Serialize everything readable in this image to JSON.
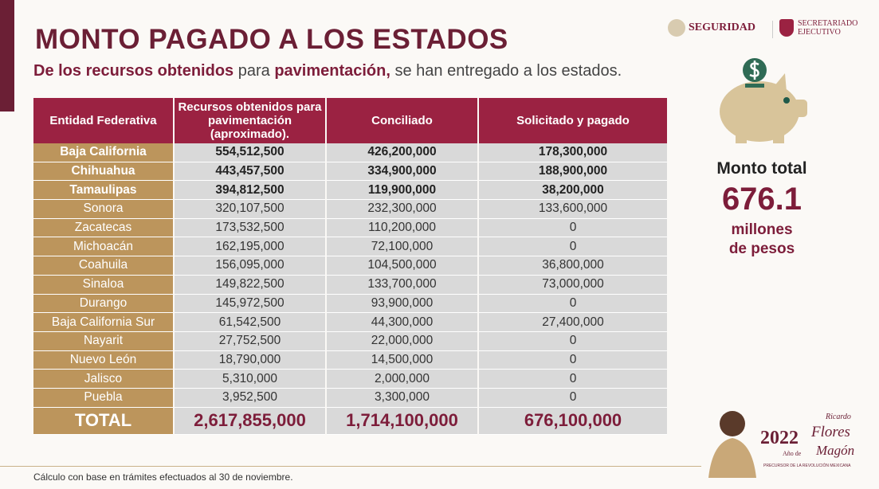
{
  "title": "MONTO PAGADO A LOS ESTADOS",
  "subtitle": {
    "p1": "De los recursos obtenidos",
    "p2": " para ",
    "p3": "pavimentación,",
    "p4": " se han entregado a los estados."
  },
  "logos": {
    "seguridad": "SEGURIDAD",
    "secretariado": "SECRETARIADO",
    "ejecutivo": "EJECUTIVO"
  },
  "table": {
    "headers": [
      "Entidad Federativa",
      "Recursos obtenidos para pavimentación (aproximado).",
      "Conciliado",
      "Solicitado y pagado"
    ],
    "rows": [
      [
        "Baja California",
        "554,512,500",
        "426,200,000",
        "178,300,000"
      ],
      [
        "Chihuahua",
        "443,457,500",
        "334,900,000",
        "188,900,000"
      ],
      [
        "Tamaulipas",
        "394,812,500",
        "119,900,000",
        "38,200,000"
      ],
      [
        "Sonora",
        "320,107,500",
        "232,300,000",
        "133,600,000"
      ],
      [
        "Zacatecas",
        "173,532,500",
        "110,200,000",
        "0"
      ],
      [
        "Michoacán",
        "162,195,000",
        "72,100,000",
        "0"
      ],
      [
        "Coahuila",
        "156,095,000",
        "104,500,000",
        "36,800,000"
      ],
      [
        "Sinaloa",
        "149,822,500",
        "133,700,000",
        "73,000,000"
      ],
      [
        "Durango",
        "145,972,500",
        "93,900,000",
        "0"
      ],
      [
        "Baja California Sur",
        "61,542,500",
        "44,300,000",
        "27,400,000"
      ],
      [
        "Nayarit",
        "27,752,500",
        "22,000,000",
        "0"
      ],
      [
        "Nuevo León",
        "18,790,000",
        "14,500,000",
        "0"
      ],
      [
        "Jalisco",
        "5,310,000",
        "2,000,000",
        "0"
      ],
      [
        "Puebla",
        "3,952,500",
        "3,300,000",
        "0"
      ]
    ],
    "total": [
      "TOTAL",
      "2,617,855,000",
      "1,714,100,000",
      "676,100,000"
    ]
  },
  "summary": {
    "label": "Monto total",
    "value": "676.1",
    "unit1": "millones",
    "unit2": "de pesos"
  },
  "footer": "Cálculo con base en trámites efectuados al 30 de noviembre.",
  "emblem": {
    "year": "2022",
    "ano": "Año de",
    "name1": "Ricardo",
    "name2": "Flores",
    "name3": "Magón",
    "tag": "PRECURSOR DE LA REVOLUCIÓN MEXICANA"
  }
}
